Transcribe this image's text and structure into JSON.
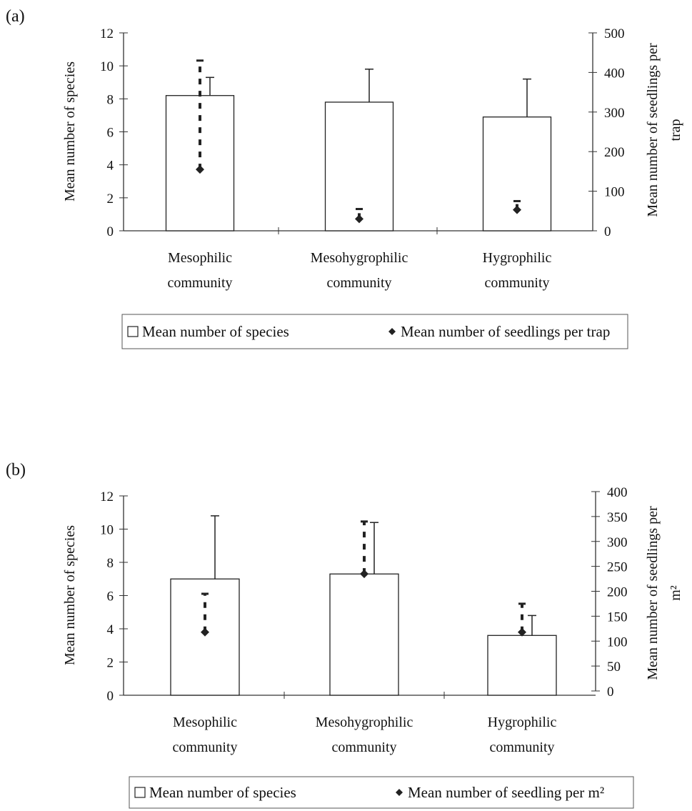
{
  "chart_data": [
    {
      "panel_label": "(a)",
      "type": "bar",
      "categories": [
        [
          "Mesophilic",
          "community"
        ],
        [
          "Mesohygrophilic",
          "community"
        ],
        [
          "Hygrophilic",
          "community"
        ]
      ],
      "series": [
        {
          "name": "Mean number of species",
          "axis": "left",
          "mark": "bar",
          "values": [
            8.2,
            7.8,
            6.9
          ],
          "error_upper": [
            9.3,
            9.8,
            9.2
          ]
        },
        {
          "name": "Mean number of seedlings per trap",
          "axis": "right",
          "mark": "diamond",
          "values": [
            155,
            30,
            53
          ],
          "error_upper": [
            430,
            55,
            75
          ]
        }
      ],
      "ylabel": "Mean number of species",
      "ylim": [
        0,
        12
      ],
      "yticks": [
        "0",
        "2",
        "4",
        "6",
        "8",
        "10",
        "12"
      ],
      "y2label": [
        "Mean number of seedlings per",
        "trap"
      ],
      "y2lim": [
        0,
        500
      ],
      "y2ticks": [
        "0",
        "100",
        "200",
        "300",
        "400",
        "500"
      ],
      "legend": [
        "Mean number of species",
        "Mean number of seedlings per trap"
      ],
      "legend_placement": "bottom",
      "grid": false
    },
    {
      "panel_label": "(b)",
      "type": "bar",
      "categories": [
        [
          "Mesophilic",
          "community"
        ],
        [
          "Mesohygrophilic",
          "community"
        ],
        [
          "Hygrophilic",
          "community"
        ]
      ],
      "series": [
        {
          "name": "Mean number of species",
          "axis": "left",
          "mark": "bar",
          "values": [
            7.0,
            7.3,
            3.6
          ],
          "error_upper": [
            10.8,
            10.4,
            4.8
          ]
        },
        {
          "name": "Mean number of seedling per m²",
          "axis": "right",
          "mark": "diamond",
          "values": [
            118,
            235,
            118
          ],
          "error_upper": [
            195,
            340,
            175
          ]
        }
      ],
      "ylabel": "Mean number of species",
      "ylim": [
        0,
        12
      ],
      "yticks": [
        "0",
        "2",
        "4",
        "6",
        "8",
        "10",
        "12"
      ],
      "y2label": [
        "Mean number of seedlings per",
        "m²"
      ],
      "y2lim": [
        0,
        400
      ],
      "y2ticks": [
        "0",
        "50",
        "100",
        "150",
        "200",
        "250",
        "300",
        "350",
        "400"
      ],
      "legend": [
        "Mean number of species",
        "Mean number of seedling per m²"
      ],
      "legend_placement": "bottom",
      "grid": false
    }
  ]
}
